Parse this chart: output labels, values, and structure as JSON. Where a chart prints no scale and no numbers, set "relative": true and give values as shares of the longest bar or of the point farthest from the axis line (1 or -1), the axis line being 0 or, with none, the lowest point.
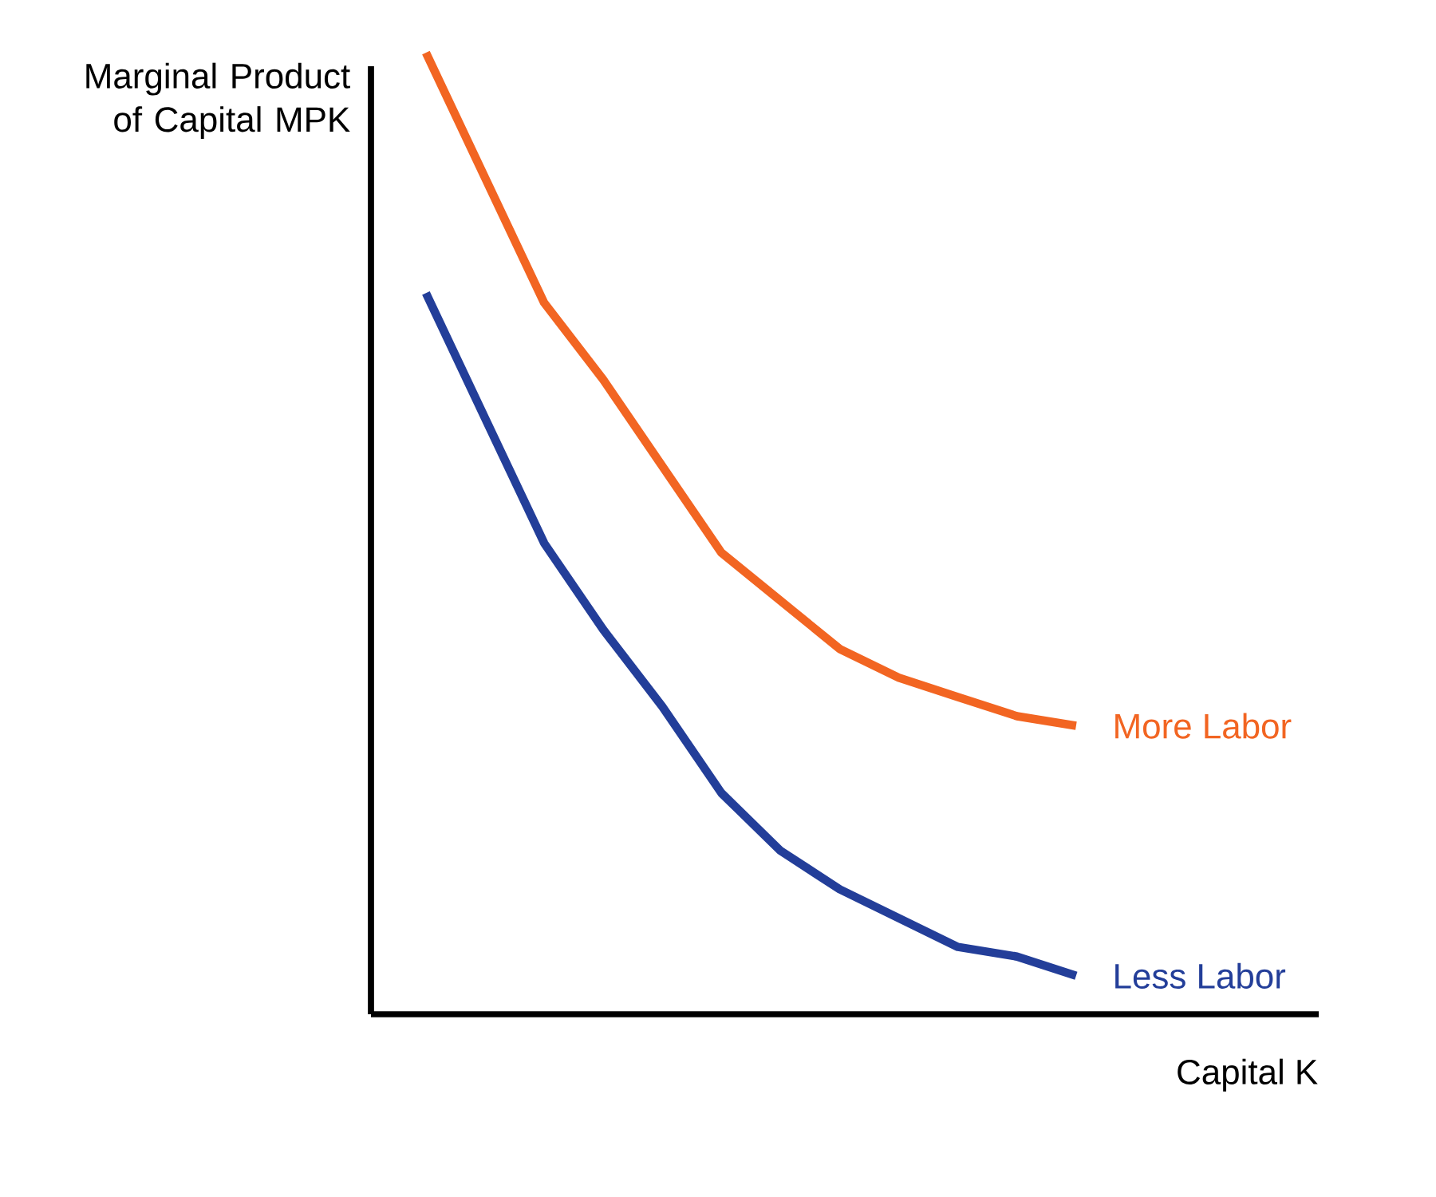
{
  "chart_data": {
    "type": "line",
    "relative": true,
    "xlabel": "Capital K",
    "ylabel": "Marginal Product of Capital MPK",
    "categories": [
      null,
      null,
      null,
      null,
      null,
      null,
      null,
      null,
      null,
      null,
      null,
      null
    ],
    "series": [
      {
        "name": "More Labor",
        "color": "#f26522",
        "values": [
          1.0,
          0.87,
          0.74,
          0.66,
          0.57,
          0.48,
          0.43,
          0.38,
          0.35,
          0.33,
          0.31,
          0.3
        ]
      },
      {
        "name": "Less Labor",
        "color": "#233e99",
        "values": [
          0.75,
          0.62,
          0.49,
          0.4,
          0.32,
          0.23,
          0.17,
          0.13,
          0.1,
          0.07,
          0.06,
          0.04
        ]
      }
    ]
  }
}
